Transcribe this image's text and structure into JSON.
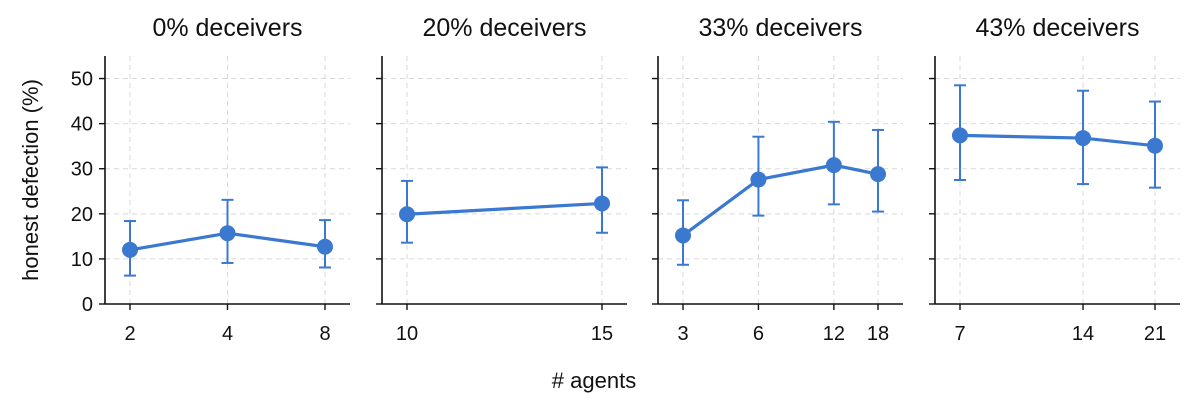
{
  "chart_data": [
    {
      "type": "line",
      "title": "0% deceivers",
      "x": [
        2,
        4,
        8
      ],
      "x_tick_labels": [
        "2",
        "4",
        "8"
      ],
      "x_scale": "log",
      "values": [
        12.0,
        15.7,
        12.7
      ],
      "err_low": [
        6.3,
        9.1,
        8.1
      ],
      "err_high": [
        18.4,
        23.1,
        18.6
      ],
      "ylim": [
        0,
        55
      ],
      "y_ticks": [
        0,
        10,
        20,
        30,
        40,
        50
      ],
      "grid": true
    },
    {
      "type": "line",
      "title": "20% deceivers",
      "x": [
        10,
        15
      ],
      "x_tick_labels": [
        "10",
        "15"
      ],
      "x_scale": "log",
      "values": [
        19.9,
        22.3
      ],
      "err_low": [
        13.6,
        15.8
      ],
      "err_high": [
        27.3,
        30.3
      ],
      "ylim": [
        0,
        55
      ],
      "y_ticks": [
        0,
        10,
        20,
        30,
        40,
        50
      ],
      "grid": true
    },
    {
      "type": "line",
      "title": "33% deceivers",
      "x": [
        3,
        6,
        12,
        18
      ],
      "x_tick_labels": [
        "3",
        "6",
        "12",
        "18"
      ],
      "x_scale": "log",
      "values": [
        15.2,
        27.6,
        30.8,
        28.8
      ],
      "err_low": [
        8.7,
        19.6,
        22.1,
        20.5
      ],
      "err_high": [
        23.0,
        37.1,
        40.4,
        38.6
      ],
      "ylim": [
        0,
        55
      ],
      "y_ticks": [
        0,
        10,
        20,
        30,
        40,
        50
      ],
      "grid": true
    },
    {
      "type": "line",
      "title": "43% deceivers",
      "x": [
        7,
        14,
        21
      ],
      "x_tick_labels": [
        "7",
        "14",
        "21"
      ],
      "x_scale": "log",
      "values": [
        37.4,
        36.8,
        35.1
      ],
      "err_low": [
        27.5,
        26.6,
        25.8
      ],
      "err_high": [
        48.5,
        47.3,
        44.9
      ],
      "ylim": [
        0,
        55
      ],
      "y_ticks": [
        0,
        10,
        20,
        30,
        40,
        50
      ],
      "grid": true
    }
  ],
  "ylabel": "honest defection (%)",
  "xlabel": "# agents",
  "colors": {
    "series": "#3b78d0",
    "axis": "#111111",
    "grid": "#d9d9d9"
  }
}
